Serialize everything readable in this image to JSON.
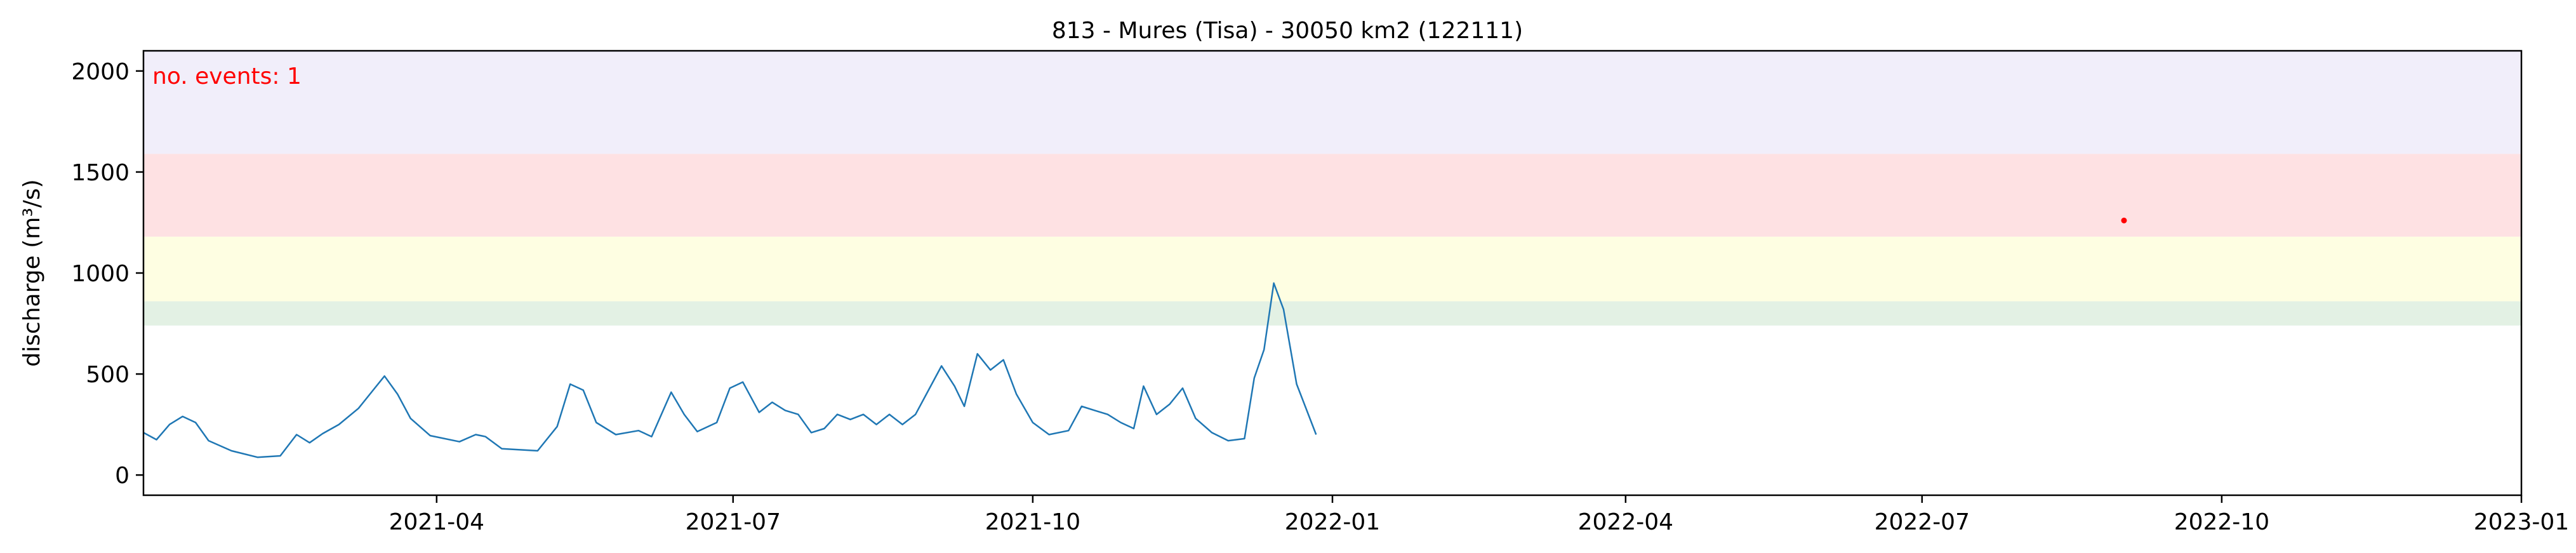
{
  "chart_data": {
    "type": "line",
    "title": "813 - Mures (Tisa) - 30050 km2 (122111)",
    "xlabel": "",
    "ylabel": "discharge (m³/s)",
    "annotation": "no. events: 1",
    "xlim": [
      "2021-01-01",
      "2023-01-01"
    ],
    "ylim": [
      -100,
      2100
    ],
    "x_tick_labels": [
      "2021-04",
      "2021-07",
      "2021-10",
      "2022-01",
      "2022-04",
      "2022-07",
      "2022-10",
      "2023-01"
    ],
    "y_tick_labels": [
      "0",
      "500",
      "1000",
      "1500",
      "2000"
    ],
    "y_ticks": [
      0,
      500,
      1000,
      1500,
      2000
    ],
    "grid": false,
    "threshold_bands": [
      {
        "from": 740,
        "to": 860,
        "color": "#e3f1e4"
      },
      {
        "from": 860,
        "to": 1180,
        "color": "#fefee2"
      },
      {
        "from": 1180,
        "to": 1590,
        "color": "#fee1e3"
      },
      {
        "from": 1590,
        "to": 2100,
        "color": "#f1eefa"
      }
    ],
    "series": [
      {
        "color": "#1f77b4",
        "points": [
          [
            "2021-01-01",
            210
          ],
          [
            "2021-01-05",
            175
          ],
          [
            "2021-01-09",
            250
          ],
          [
            "2021-01-13",
            290
          ],
          [
            "2021-01-17",
            260
          ],
          [
            "2021-01-21",
            170
          ],
          [
            "2021-01-28",
            120
          ],
          [
            "2021-02-05",
            88
          ],
          [
            "2021-02-12",
            95
          ],
          [
            "2021-02-17",
            200
          ],
          [
            "2021-02-21",
            160
          ],
          [
            "2021-02-25",
            205
          ],
          [
            "2021-03-02",
            250
          ],
          [
            "2021-03-08",
            330
          ],
          [
            "2021-03-13",
            430
          ],
          [
            "2021-03-16",
            490
          ],
          [
            "2021-03-20",
            400
          ],
          [
            "2021-03-24",
            280
          ],
          [
            "2021-03-30",
            195
          ],
          [
            "2021-04-08",
            165
          ],
          [
            "2021-04-13",
            200
          ],
          [
            "2021-04-16",
            190
          ],
          [
            "2021-04-21",
            130
          ],
          [
            "2021-05-02",
            120
          ],
          [
            "2021-05-08",
            240
          ],
          [
            "2021-05-12",
            450
          ],
          [
            "2021-05-16",
            420
          ],
          [
            "2021-05-20",
            260
          ],
          [
            "2021-05-26",
            200
          ],
          [
            "2021-06-02",
            220
          ],
          [
            "2021-06-06",
            190
          ],
          [
            "2021-06-12",
            410
          ],
          [
            "2021-06-16",
            300
          ],
          [
            "2021-06-20",
            215
          ],
          [
            "2021-06-26",
            260
          ],
          [
            "2021-06-30",
            430
          ],
          [
            "2021-07-04",
            460
          ],
          [
            "2021-07-09",
            310
          ],
          [
            "2021-07-13",
            360
          ],
          [
            "2021-07-17",
            320
          ],
          [
            "2021-07-21",
            300
          ],
          [
            "2021-07-25",
            210
          ],
          [
            "2021-07-29",
            230
          ],
          [
            "2021-08-02",
            300
          ],
          [
            "2021-08-06",
            275
          ],
          [
            "2021-08-10",
            300
          ],
          [
            "2021-08-14",
            250
          ],
          [
            "2021-08-18",
            300
          ],
          [
            "2021-08-22",
            250
          ],
          [
            "2021-08-26",
            300
          ],
          [
            "2021-08-30",
            420
          ],
          [
            "2021-09-03",
            540
          ],
          [
            "2021-09-07",
            440
          ],
          [
            "2021-09-10",
            340
          ],
          [
            "2021-09-14",
            600
          ],
          [
            "2021-09-18",
            520
          ],
          [
            "2021-09-22",
            570
          ],
          [
            "2021-09-26",
            400
          ],
          [
            "2021-10-01",
            260
          ],
          [
            "2021-10-06",
            200
          ],
          [
            "2021-10-12",
            220
          ],
          [
            "2021-10-16",
            340
          ],
          [
            "2021-10-20",
            320
          ],
          [
            "2021-10-24",
            300
          ],
          [
            "2021-10-28",
            260
          ],
          [
            "2021-11-01",
            230
          ],
          [
            "2021-11-04",
            440
          ],
          [
            "2021-11-08",
            300
          ],
          [
            "2021-11-12",
            350
          ],
          [
            "2021-11-16",
            430
          ],
          [
            "2021-11-20",
            280
          ],
          [
            "2021-11-25",
            210
          ],
          [
            "2021-11-30",
            170
          ],
          [
            "2021-12-05",
            180
          ],
          [
            "2021-12-08",
            480
          ],
          [
            "2021-12-11",
            620
          ],
          [
            "2021-12-14",
            950
          ],
          [
            "2021-12-17",
            820
          ],
          [
            "2021-12-21",
            450
          ],
          [
            "2021-12-27",
            200
          ]
        ]
      }
    ],
    "events": [
      {
        "x": "2022-09-01",
        "y": 1260
      }
    ]
  }
}
